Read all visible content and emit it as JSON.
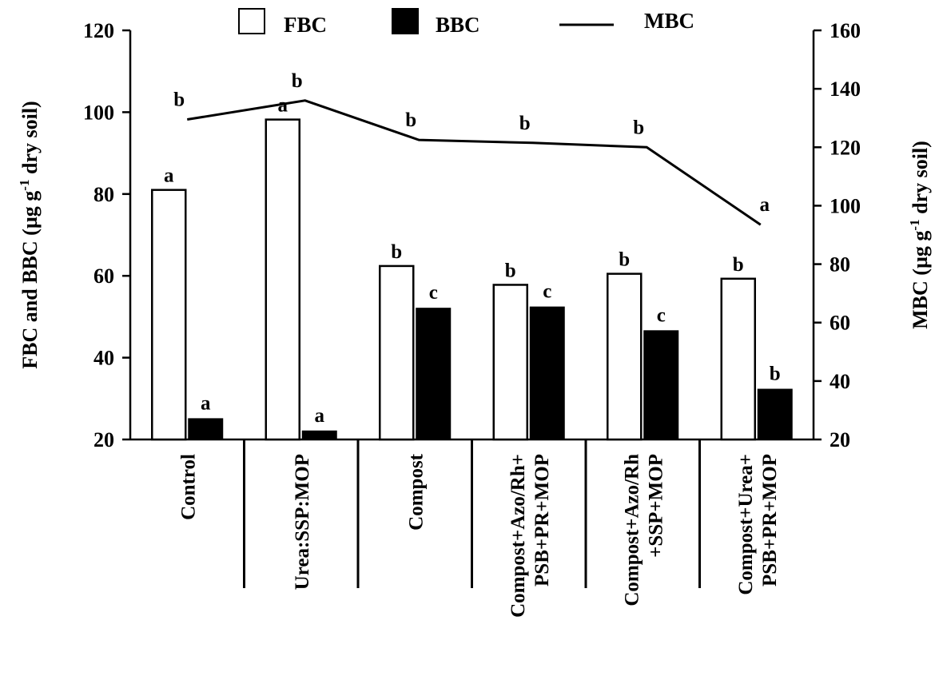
{
  "chart_data": {
    "type": "bar",
    "categories": [
      [
        "Control"
      ],
      [
        "Urea:SSP:MOP"
      ],
      [
        "Compost"
      ],
      [
        "Compost+Azo/Rh+",
        "PSB+PR+MOP"
      ],
      [
        "Compost+Azo/Rh",
        "+SSP+MOP"
      ],
      [
        "Compost+Urea+",
        "PSB+PR+MOP"
      ]
    ],
    "series": [
      {
        "name": "FBC",
        "kind": "bar",
        "axis": "left",
        "color": "#ffffff",
        "values": [
          81,
          98.2,
          62.4,
          57.8,
          60.5,
          59.3
        ],
        "labels": [
          "a",
          "a",
          "b",
          "b",
          "b",
          "b"
        ]
      },
      {
        "name": "BBC",
        "kind": "bar",
        "axis": "left",
        "color": "#000000",
        "values": [
          25,
          22,
          52,
          52.3,
          46.5,
          32.2
        ],
        "labels": [
          "a",
          "a",
          "c",
          "c",
          "c",
          "b"
        ]
      },
      {
        "name": "MBC",
        "kind": "line",
        "axis": "right",
        "color": "#000000",
        "values": [
          129.5,
          136,
          122.5,
          121.5,
          120,
          93.5
        ],
        "labels": [
          "b",
          "b",
          "b",
          "b",
          "b",
          "a"
        ]
      }
    ],
    "ylabel": "FBC and BBC (µg g-1 dry soil)",
    "y2label": "MBC (µg g-1 dry soil)",
    "ylim": [
      20,
      120
    ],
    "y2lim": [
      20,
      160
    ],
    "yticks": [
      "20",
      "40",
      "60",
      "80",
      "100",
      "120"
    ],
    "y2ticks": [
      "20",
      "40",
      "60",
      "80",
      "100",
      "120",
      "140",
      "160"
    ],
    "legend_position": "top-center",
    "grid": false
  }
}
